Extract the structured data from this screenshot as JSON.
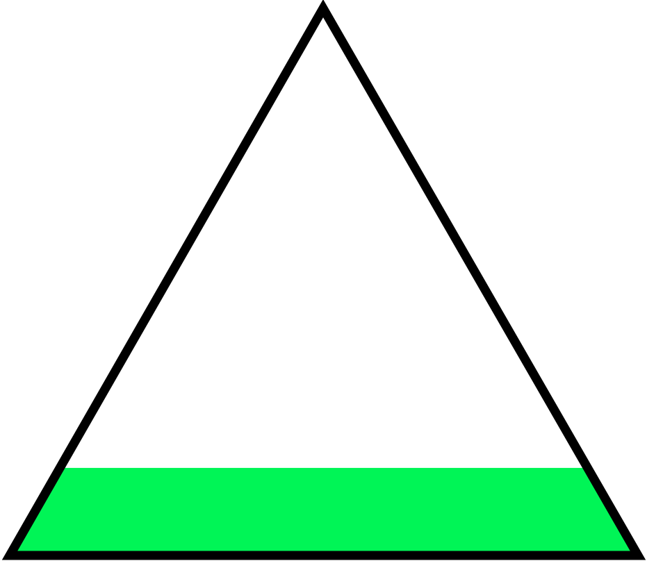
{
  "indicator": {
    "icon": "triangle-level-icon",
    "fill_level": 0.16,
    "colors": {
      "outline": "#000000",
      "fill": "#00f556",
      "background": "#ffffff"
    }
  }
}
